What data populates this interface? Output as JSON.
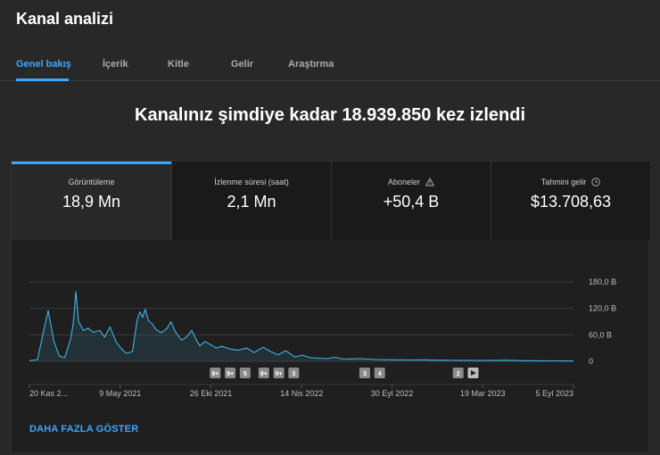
{
  "page": {
    "title": "Kanal analizi"
  },
  "tabs": [
    {
      "label": "Genel bakış"
    },
    {
      "label": "İçerik"
    },
    {
      "label": "Kitle"
    },
    {
      "label": "Gelir"
    },
    {
      "label": "Araştırma"
    }
  ],
  "headline": "Kanalınız şimdiye kadar 18.939.850 kez izlendi",
  "metrics": [
    {
      "label": "Görüntüleme",
      "value": "18,9 Mn"
    },
    {
      "label": "İzlenme süresi (saat)",
      "value": "2,1 Mn"
    },
    {
      "label": "Aboneler",
      "value": "+50,4 B",
      "icon": "warning-icon"
    },
    {
      "label": "Tahmini gelir",
      "value": "$13.708,63",
      "icon": "clock-icon"
    }
  ],
  "show_more_label": "DAHA FAZLA GÖSTER",
  "colors": {
    "accent": "#3ea6ff",
    "line": "#41b3e6",
    "background": "#282828"
  },
  "chart_data": {
    "type": "area",
    "y_tick_labels": [
      "180,0 B",
      "120,0 B",
      "60,0 B",
      "0"
    ],
    "y_ticks": [
      180000,
      120000,
      60000,
      0
    ],
    "ylim": [
      0,
      180000
    ],
    "x_tick_labels": [
      "20 Kas 2...",
      "9 May 2021",
      "26 Eki 2021",
      "14 Nis 2022",
      "30 Eyl 2022",
      "19 Mar 2023",
      "5 Eyl 2023"
    ],
    "x_ticks": [
      "2020-11-20",
      "2021-05-09",
      "2021-10-26",
      "2022-04-14",
      "2022-09-30",
      "2023-03-19",
      "2023-09-05"
    ],
    "x_range": [
      "2020-11-20",
      "2023-09-05"
    ],
    "grid": true,
    "series": [
      {
        "values": [
          [
            "2020-11-20",
            1000
          ],
          [
            "2020-12-05",
            4000
          ],
          [
            "2020-12-15",
            60000
          ],
          [
            "2020-12-25",
            115000
          ],
          [
            "2021-01-05",
            45000
          ],
          [
            "2021-01-15",
            12000
          ],
          [
            "2021-01-25",
            8000
          ],
          [
            "2021-02-05",
            50000
          ],
          [
            "2021-02-10",
            85000
          ],
          [
            "2021-02-15",
            158000
          ],
          [
            "2021-02-20",
            90000
          ],
          [
            "2021-03-01",
            70000
          ],
          [
            "2021-03-10",
            75000
          ],
          [
            "2021-03-20",
            66000
          ],
          [
            "2021-04-01",
            70000
          ],
          [
            "2021-04-10",
            55000
          ],
          [
            "2021-04-20",
            78000
          ],
          [
            "2021-05-01",
            45000
          ],
          [
            "2021-05-10",
            30000
          ],
          [
            "2021-05-20",
            18000
          ],
          [
            "2021-06-01",
            22000
          ],
          [
            "2021-06-10",
            95000
          ],
          [
            "2021-06-15",
            112000
          ],
          [
            "2021-06-20",
            100000
          ],
          [
            "2021-06-25",
            118000
          ],
          [
            "2021-07-01",
            92000
          ],
          [
            "2021-07-08",
            85000
          ],
          [
            "2021-07-15",
            72000
          ],
          [
            "2021-07-25",
            65000
          ],
          [
            "2021-08-05",
            75000
          ],
          [
            "2021-08-12",
            90000
          ],
          [
            "2021-08-20",
            68000
          ],
          [
            "2021-09-01",
            48000
          ],
          [
            "2021-09-10",
            55000
          ],
          [
            "2021-09-20",
            70000
          ],
          [
            "2021-09-28",
            50000
          ],
          [
            "2021-10-05",
            35000
          ],
          [
            "2021-10-15",
            45000
          ],
          [
            "2021-10-25",
            38000
          ],
          [
            "2021-11-05",
            30000
          ],
          [
            "2021-11-15",
            34000
          ],
          [
            "2021-12-01",
            28000
          ],
          [
            "2021-12-15",
            25000
          ],
          [
            "2022-01-01",
            30000
          ],
          [
            "2022-01-15",
            20000
          ],
          [
            "2022-02-01",
            32000
          ],
          [
            "2022-02-15",
            22000
          ],
          [
            "2022-03-01",
            15000
          ],
          [
            "2022-03-15",
            24000
          ],
          [
            "2022-04-01",
            10000
          ],
          [
            "2022-04-15",
            14000
          ],
          [
            "2022-05-01",
            8000
          ],
          [
            "2022-05-15",
            7000
          ],
          [
            "2022-06-01",
            6000
          ],
          [
            "2022-06-15",
            9000
          ],
          [
            "2022-07-01",
            5000
          ],
          [
            "2022-07-15",
            5500
          ],
          [
            "2022-08-01",
            6000
          ],
          [
            "2022-09-01",
            4000
          ],
          [
            "2022-10-01",
            3500
          ],
          [
            "2022-11-01",
            3000
          ],
          [
            "2022-12-01",
            3200
          ],
          [
            "2023-01-01",
            2500
          ],
          [
            "2023-02-01",
            2200
          ],
          [
            "2023-03-01",
            2000
          ],
          [
            "2023-04-01",
            1800
          ],
          [
            "2023-05-01",
            2500
          ],
          [
            "2023-06-01",
            1500
          ],
          [
            "2023-07-01",
            1200
          ],
          [
            "2023-08-01",
            1000
          ],
          [
            "2023-09-05",
            900
          ]
        ]
      }
    ],
    "annotations": [
      {
        "date": "2021-11-03",
        "label": "9+"
      },
      {
        "date": "2021-12-01",
        "label": "9+"
      },
      {
        "date": "2021-12-29",
        "label": "5"
      },
      {
        "date": "2022-02-02",
        "label": "9+"
      },
      {
        "date": "2022-03-02",
        "label": "9+"
      },
      {
        "date": "2022-03-30",
        "label": "3"
      },
      {
        "date": "2022-08-10",
        "label": "3"
      },
      {
        "date": "2022-09-07",
        "label": "4"
      },
      {
        "date": "2023-02-01",
        "label": "2"
      },
      {
        "date": "2023-03-01",
        "label": "",
        "icon": "play-icon"
      }
    ]
  }
}
